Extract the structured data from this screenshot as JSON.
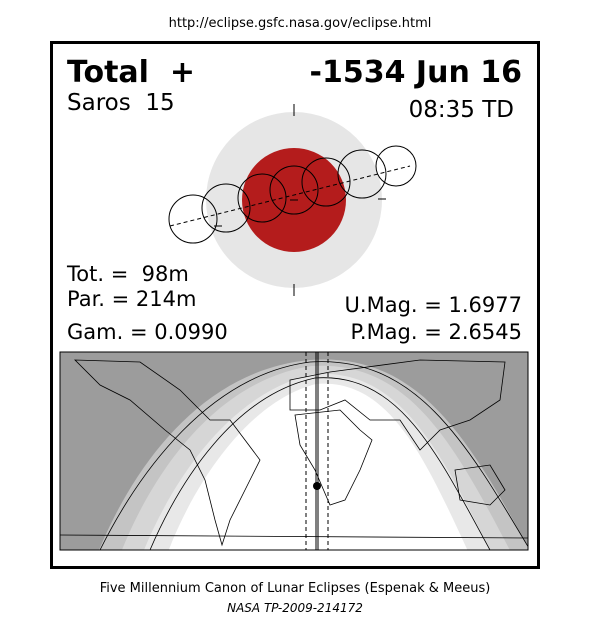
{
  "header": {
    "url": "http://eclipse.gsfc.nasa.gov/eclipse.html"
  },
  "eclipse": {
    "type": "Total  +",
    "date": "-1534 Jun 16",
    "saros": "Saros  15",
    "time": "08:35 TD",
    "tot": "Tot. =  98m",
    "par": "Par. = 214m",
    "gam": "Gam. = 0.0990",
    "umag": "U.Mag. = 1.6977",
    "pmag": "P.Mag. = 2.6545"
  },
  "footer": {
    "canon": "Five Millennium Canon of Lunar Eclipses (Espenak & Meeus)",
    "publication": "NASA TP-2009-214172"
  }
}
